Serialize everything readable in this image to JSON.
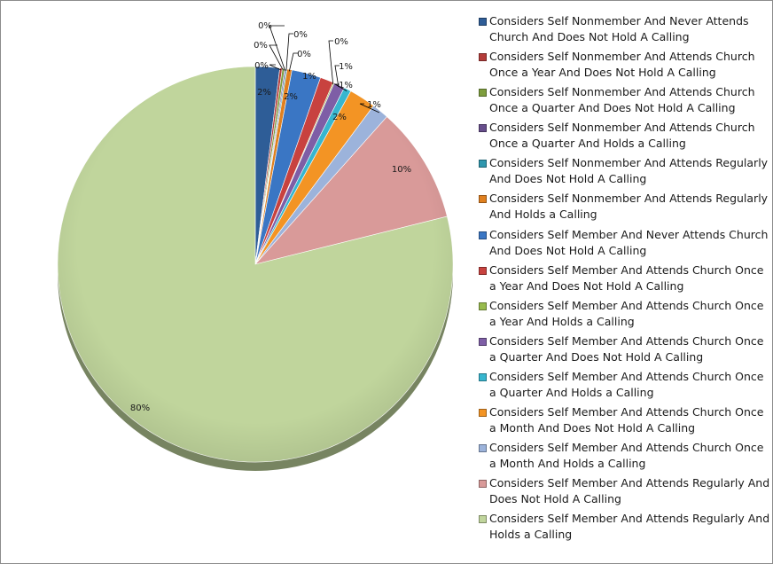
{
  "chart_data": {
    "type": "pie",
    "title": "",
    "start_angle_deg": 0,
    "direction": "clockwise",
    "legend_position": "right",
    "slices": [
      {
        "label": "Considers Self Nonmember And Never Attends Church And Does Not Hold A Calling",
        "value": 2,
        "data_label": "2%",
        "color": "#2E5D97"
      },
      {
        "label": "Considers Self Nonmember And Attends Church Once a Year And Does Not Hold A Calling",
        "value": 0.2,
        "data_label": "0%",
        "color": "#B43C3A"
      },
      {
        "label": "Considers Self Nonmember And Attends Church Once a Quarter And Does Not Hold A Calling",
        "value": 0.2,
        "data_label": "0%",
        "color": "#7E9E3E"
      },
      {
        "label": "Considers Self Nonmember And Attends Church Once a Quarter And Holds a Calling",
        "value": 0.1,
        "data_label": "0%",
        "color": "#674E8C"
      },
      {
        "label": "Considers Self Nonmember And Attends Regularly And Does Not Hold A Calling",
        "value": 0.1,
        "data_label": "0%",
        "color": "#2F97AE"
      },
      {
        "label": "Considers Self Nonmember And Attends Regularly And Holds a Calling",
        "value": 0.4,
        "data_label": "0%",
        "color": "#E0801F"
      },
      {
        "label": "Considers Self Member And Never Attends Church And Does Not Hold A Calling",
        "value": 2.4,
        "data_label": "2%",
        "color": "#3A76C4"
      },
      {
        "label": "Considers Self Member And Attends Church Once a Year And Does Not Hold A Calling",
        "value": 1.1,
        "data_label": "1%",
        "color": "#C8423F"
      },
      {
        "label": "Considers Self Member And Attends Church Once a Year And Holds a Calling",
        "value": 0.1,
        "data_label": "0%",
        "color": "#98BB4D"
      },
      {
        "label": "Considers Self Member And Attends Church Once a Quarter And Does Not Hold A Calling",
        "value": 0.9,
        "data_label": "1%",
        "color": "#7E5EA6"
      },
      {
        "label": "Considers Self Member And Attends Church Once a Quarter And Holds a Calling",
        "value": 0.6,
        "data_label": "1%",
        "color": "#37B6CF"
      },
      {
        "label": "Considers Self Member And Attends Church Once a Month And Does Not Hold A Calling",
        "value": 2.2,
        "data_label": "2%",
        "color": "#F39424"
      },
      {
        "label": "Considers Self Member And Attends Church Once a Month And Holds a Calling",
        "value": 1.4,
        "data_label": "1%",
        "color": "#9CB3DB"
      },
      {
        "label": "Considers Self Member And Attends Regularly And Does Not Hold A Calling",
        "value": 9.6,
        "data_label": "10%",
        "color": "#D99A99"
      },
      {
        "label": "Considers Self Member And Attends Regularly And Holds a Calling",
        "value": 79.6,
        "data_label": "80%",
        "color": "#C0D59C"
      }
    ]
  }
}
